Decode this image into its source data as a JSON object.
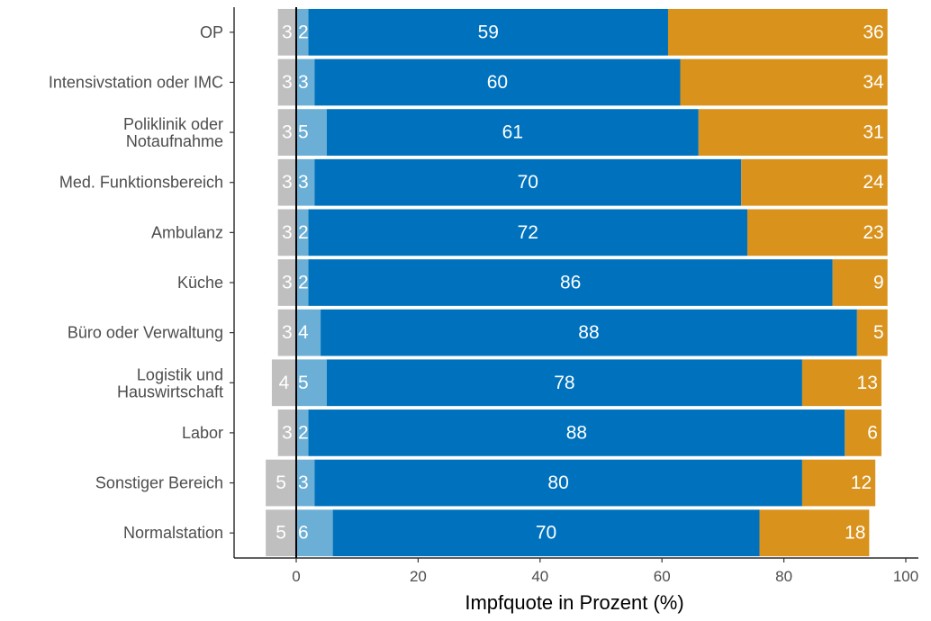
{
  "chart_data": {
    "type": "bar",
    "orientation": "horizontal",
    "stacked": "diverging",
    "title": "",
    "xlabel": "Impfquote in Prozent (%)",
    "ylabel": "",
    "xlim": [
      -10,
      100
    ],
    "x_ticks": [
      0,
      20,
      40,
      60,
      80,
      100
    ],
    "x_tick_labels": [
      "0",
      "20",
      "40",
      "60",
      "80",
      "100"
    ],
    "grid": false,
    "legend": "none",
    "categories": [
      "OP",
      "Intensivstation oder IMC",
      "Poliklinik oder\nNotaufnahme",
      "Med. Funktionsbereich",
      "Ambulanz",
      "Küche",
      "Büro oder Verwaltung",
      "Logistik und\nHauswirtschaft",
      "Labor",
      "Sonstiger Bereich",
      "Normalstation"
    ],
    "series": [
      {
        "color": "#bfbfbf",
        "direction": "negative",
        "values": [
          3,
          3,
          3,
          3,
          3,
          3,
          3,
          4,
          3,
          5,
          5
        ]
      },
      {
        "color": "#6baed6",
        "direction": "positive",
        "values": [
          2,
          3,
          5,
          3,
          2,
          2,
          4,
          5,
          2,
          3,
          6
        ]
      },
      {
        "color": "#0072bd",
        "direction": "positive",
        "values": [
          59,
          60,
          61,
          70,
          72,
          86,
          88,
          78,
          88,
          80,
          70
        ]
      },
      {
        "color": "#d9921c",
        "direction": "positive",
        "values": [
          36,
          34,
          31,
          24,
          23,
          9,
          5,
          13,
          6,
          12,
          18
        ]
      }
    ],
    "label_positions": [
      "center",
      "center",
      "center",
      "right"
    ]
  }
}
